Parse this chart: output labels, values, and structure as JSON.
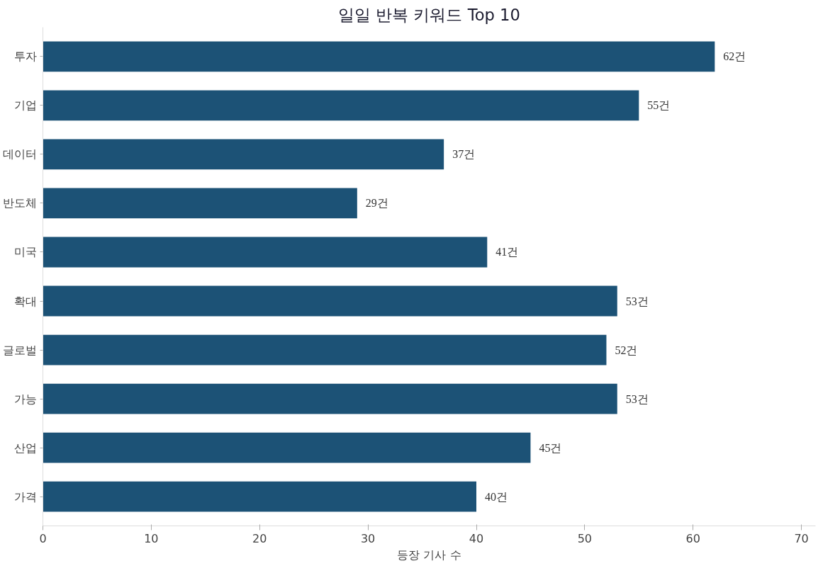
{
  "chart_data": {
    "type": "bar",
    "orientation": "horizontal",
    "title": "일일 반복 키워드 Top 10",
    "xlabel": "등장 기사 수",
    "categories": [
      "투자",
      "기업",
      "데이터",
      "반도체",
      "미국",
      "확대",
      "글로벌",
      "가능",
      "산업",
      "가격"
    ],
    "values": [
      62,
      55,
      37,
      29,
      41,
      53,
      52,
      53,
      45,
      40
    ],
    "value_labels": [
      "62건",
      "55건",
      "37건",
      "29건",
      "41건",
      "53건",
      "52건",
      "53건",
      "45건",
      "40건"
    ],
    "color": "#1c5276",
    "xlim": [
      0,
      71.3
    ],
    "xticks": [
      0,
      10,
      20,
      30,
      40,
      50,
      60,
      70
    ],
    "grid": false
  }
}
